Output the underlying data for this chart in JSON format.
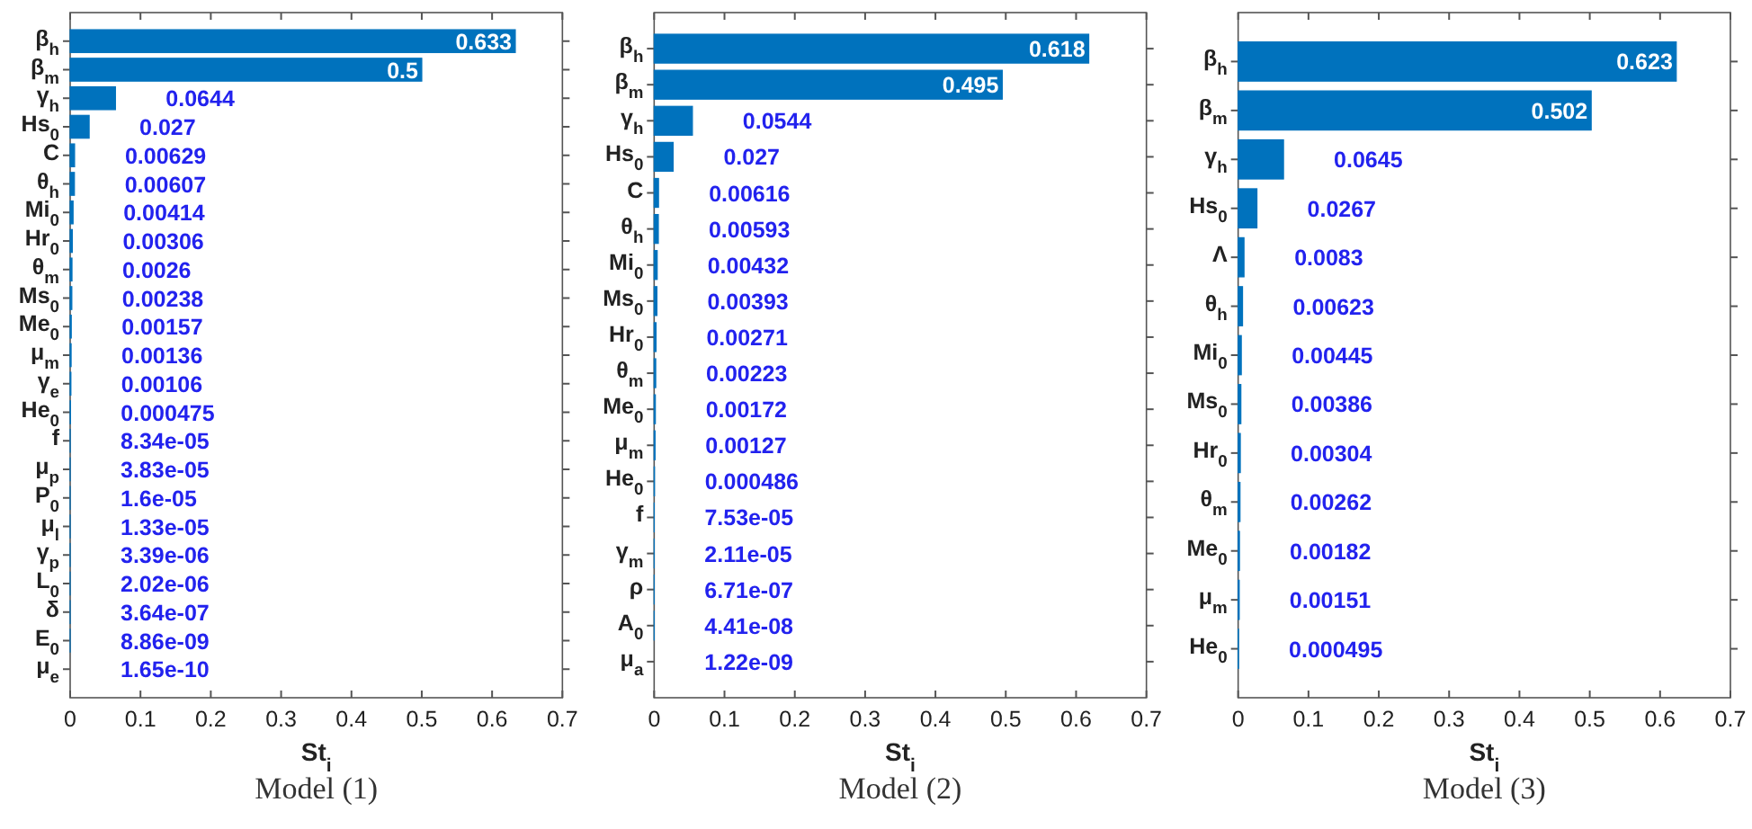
{
  "chart_data": [
    {
      "type": "bar",
      "orientation": "horizontal",
      "title": "Model (1)",
      "xlabel": "St$_{i}$",
      "color": "#0072bd",
      "xlim": [
        0,
        0.7
      ],
      "xticks": [
        0,
        0.1,
        0.2,
        0.3,
        0.4,
        0.5,
        0.6,
        0.7
      ],
      "grid": false,
      "categories": [
        "β$_{h}$",
        "β$_{m}$",
        "γ$_{h}$",
        "Hs$_{0}$",
        "C",
        "θ$_{h}$",
        "Mi$_{0}$",
        "Hr$_{0}$",
        "θ$_{m}$",
        "Ms$_{0}$",
        "Me$_{0}$",
        "μ$_{m}$",
        "γ$_{e}$",
        "He$_{0}$",
        "f",
        "μ$_{p}$",
        "P$_{0}$",
        "μ$_{l}$",
        "γ$_{p}$",
        "L$_{0}$",
        "δ",
        "E$_{0}$",
        "μ$_{e}$"
      ],
      "values": [
        0.633,
        0.5,
        0.0644,
        0.027,
        0.00629,
        0.00607,
        0.00414,
        0.00306,
        0.0026,
        0.00238,
        0.00157,
        0.00136,
        0.00106,
        0.000475,
        8.34e-05,
        3.83e-05,
        1.6e-05,
        1.33e-05,
        3.39e-06,
        2.02e-06,
        3.64e-07,
        8.86e-09,
        1.65e-10
      ],
      "value_labels": [
        "0.633",
        "0.5",
        "0.0644",
        "0.027",
        "0.00629",
        "0.00607",
        "0.00414",
        "0.00306",
        "0.0026",
        "0.00238",
        "0.00157",
        "0.00136",
        "0.00106",
        "0.000475",
        "8.34e-05",
        "3.83e-05",
        "1.6e-05",
        "1.33e-05",
        "3.39e-06",
        "2.02e-06",
        "3.64e-07",
        "8.86e-09",
        "1.65e-10"
      ]
    },
    {
      "type": "bar",
      "orientation": "horizontal",
      "title": "Model (2)",
      "xlabel": "St$_{i}$",
      "color": "#0072bd",
      "xlim": [
        0,
        0.7
      ],
      "xticks": [
        0,
        0.1,
        0.2,
        0.3,
        0.4,
        0.5,
        0.6,
        0.7
      ],
      "grid": false,
      "categories": [
        "β$_{h}$",
        "β$_{m}$",
        "γ$_{h}$",
        "Hs$_{0}$",
        "C",
        "θ$_{h}$",
        "Mi$_{0}$",
        "Ms$_{0}$",
        "Hr$_{0}$",
        "θ$_{m}$",
        "Me$_{0}$",
        "μ$_{m}$",
        "He$_{0}$",
        "f",
        "γ$_{m}$",
        "ρ",
        "A$_{0}$",
        "μ$_{a}$"
      ],
      "values": [
        0.618,
        0.495,
        0.0544,
        0.027,
        0.00616,
        0.00593,
        0.00432,
        0.00393,
        0.00271,
        0.00223,
        0.00172,
        0.00127,
        0.000486,
        7.53e-05,
        2.11e-05,
        6.71e-07,
        4.41e-08,
        1.22e-09
      ],
      "value_labels": [
        "0.618",
        "0.495",
        "0.0544",
        "0.027",
        "0.00616",
        "0.00593",
        "0.00432",
        "0.00393",
        "0.00271",
        "0.00223",
        "0.00172",
        "0.00127",
        "0.000486",
        "7.53e-05",
        "2.11e-05",
        "6.71e-07",
        "4.41e-08",
        "1.22e-09"
      ]
    },
    {
      "type": "bar",
      "orientation": "horizontal",
      "title": "Model (3)",
      "xlabel": "St$_{i}$",
      "color": "#0072bd",
      "xlim": [
        0,
        0.7
      ],
      "xticks": [
        0,
        0.1,
        0.2,
        0.3,
        0.4,
        0.5,
        0.6,
        0.7
      ],
      "grid": false,
      "categories": [
        "β$_{h}$",
        "β$_{m}$",
        "γ$_{h}$",
        "Hs$_{0}$",
        "Λ",
        "θ$_{h}$",
        "Mi$_{0}$",
        "Ms$_{0}$",
        "Hr$_{0}$",
        "θ$_{m}$",
        "Me$_{0}$",
        "μ$_{m}$",
        "He$_{0}$"
      ],
      "values": [
        0.623,
        0.502,
        0.0645,
        0.0267,
        0.0083,
        0.00623,
        0.00445,
        0.00386,
        0.00304,
        0.00262,
        0.00182,
        0.00151,
        0.000495
      ],
      "value_labels": [
        "0.623",
        "0.502",
        "0.0645",
        "0.0267",
        "0.0083",
        "0.00623",
        "0.00445",
        "0.00386",
        "0.00304",
        "0.00262",
        "0.00182",
        "0.00151",
        "0.000495"
      ]
    }
  ]
}
